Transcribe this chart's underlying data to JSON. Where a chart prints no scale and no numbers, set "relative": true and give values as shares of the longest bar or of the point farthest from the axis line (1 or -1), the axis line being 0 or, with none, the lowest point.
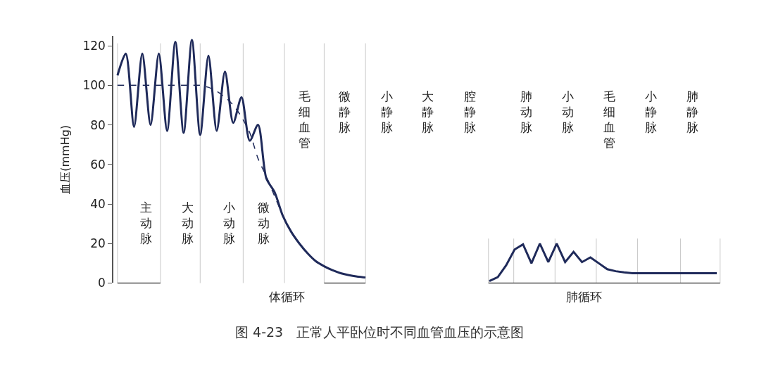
{
  "chart_data": [
    {
      "type": "line",
      "title": "图 4-23　正常人平卧位时不同血管血压的示意图",
      "ylabel": "血压(mmHg)",
      "categories": [
        null,
        null,
        null,
        null,
        null,
        null,
        null,
        null,
        null,
        null,
        null,
        null,
        null,
        null,
        null,
        null,
        null,
        null,
        null,
        null,
        null,
        null,
        null,
        null,
        null,
        null,
        null,
        null,
        null,
        null,
        null
      ],
      "series": [
        {
          "color": "#1f2a5a",
          "line_style": "solid",
          "values": [
            105,
            116,
            79,
            116,
            80,
            116,
            77,
            122,
            76,
            123,
            75,
            115,
            77,
            107,
            81,
            94,
            72,
            80,
            53,
            46,
            34,
            26,
            20,
            15,
            11,
            8.5,
            6.5,
            5,
            4,
            3.3,
            2.8
          ]
        },
        {
          "color": "#1f2a5a",
          "line_style": "dashed",
          "values": [
            100,
            100,
            100,
            100,
            100,
            100,
            100,
            100,
            100,
            100,
            100,
            99,
            97,
            94,
            90,
            84,
            76,
            63,
            54,
            44,
            34,
            null,
            null,
            null,
            null,
            null,
            null,
            null,
            null,
            null,
            null
          ]
        }
      ],
      "ylim": [
        0,
        125
      ],
      "yticks": [
        0,
        20,
        40,
        60,
        80,
        100,
        120
      ],
      "tick_labels": "y",
      "grid": "x",
      "annotations": [
        "主动脉",
        "大动脉",
        "小动脉",
        "微动脉",
        "毛细血管",
        "微静脉",
        "小静脉",
        "大静脉",
        "腔静脉",
        "体循环"
      ]
    },
    {
      "type": "line",
      "categories": [
        null,
        null,
        null,
        null,
        null,
        null,
        null,
        null,
        null,
        null,
        null,
        null,
        null,
        null,
        null,
        null,
        null,
        null,
        null,
        null,
        null,
        null,
        null,
        null,
        null,
        null,
        null,
        null
      ],
      "series": [
        {
          "color": "#1f2a5a",
          "line_style": "solid",
          "values": [
            0.05,
            0.15,
            0.45,
            0.85,
            0.98,
            0.5,
            1,
            0.53,
            1,
            0.53,
            0.79,
            0.53,
            0.65,
            0.5,
            0.35,
            0.3,
            0.27,
            0.25,
            0.25,
            0.25,
            0.25,
            0.25,
            0.25,
            0.25,
            0.25,
            0.25,
            0.25,
            0.25
          ]
        }
      ],
      "relative": true,
      "grid": "x",
      "annotations": [
        "肺动脉",
        "小动脉",
        "毛细血管",
        "小静脉",
        "肺静脉",
        "肺循环"
      ]
    }
  ]
}
